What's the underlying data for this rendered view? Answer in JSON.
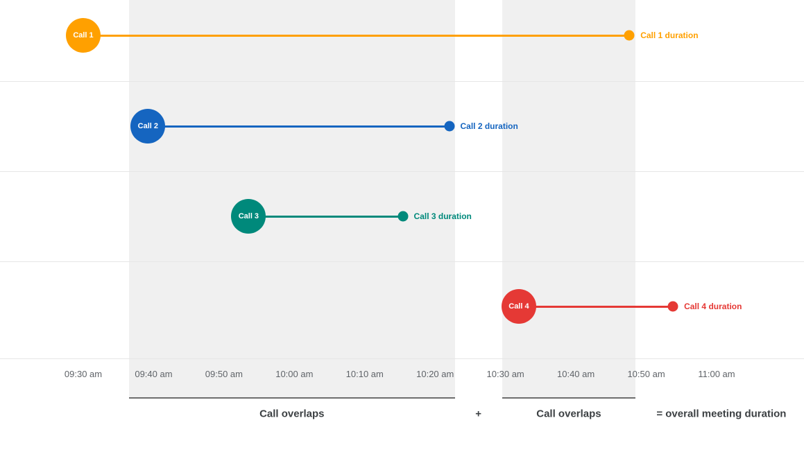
{
  "chart_data": {
    "type": "timeline",
    "title": "",
    "x_axis": {
      "tick_labels": [
        "09:30 am",
        "09:40 am",
        "09:50 am",
        "10:00 am",
        "10:10 am",
        "10:20 am",
        "10:30 am",
        "10:40 am",
        "10:50 am",
        "11:00 am"
      ],
      "tick_minutes": [
        0,
        10,
        20,
        30,
        40,
        50,
        60,
        70,
        80,
        90
      ],
      "range_start": "09:30 am",
      "range_end": "11:00 am"
    },
    "calls": [
      {
        "name": "Call 1",
        "duration_label": "Call 1 duration",
        "color": "#FFA000",
        "start_time": "09:30 am",
        "end_time": "10:48 am",
        "start_min": 0,
        "end_min": 77.6
      },
      {
        "name": "Call 2",
        "duration_label": "Call 2 duration",
        "color": "#1565C0",
        "start_time": "09:39 am",
        "end_time": "10:22 am",
        "start_min": 9.2,
        "end_min": 52.0
      },
      {
        "name": "Call 3",
        "duration_label": "Call 3 duration",
        "color": "#00897B",
        "start_time": "09:54 am",
        "end_time": "10:15 am",
        "start_min": 23.5,
        "end_min": 45.4
      },
      {
        "name": "Call 4",
        "duration_label": "Call 4 duration",
        "color": "#E53935",
        "start_time": "10:32 am",
        "end_time": "10:54 am",
        "start_min": 61.9,
        "end_min": 83.8
      }
    ],
    "overlap_bands": [
      {
        "label": "Call overlaps",
        "start_min": 6.5,
        "end_min": 52.8,
        "start_time": "09:36 am",
        "end_time": "10:23 am"
      },
      {
        "label": "Call overlaps",
        "start_min": 59.5,
        "end_min": 78.5,
        "start_time": "10:29 am",
        "end_time": "10:48 am"
      }
    ],
    "annotations": {
      "plus": "+",
      "equals": "= overall meeting duration"
    }
  }
}
